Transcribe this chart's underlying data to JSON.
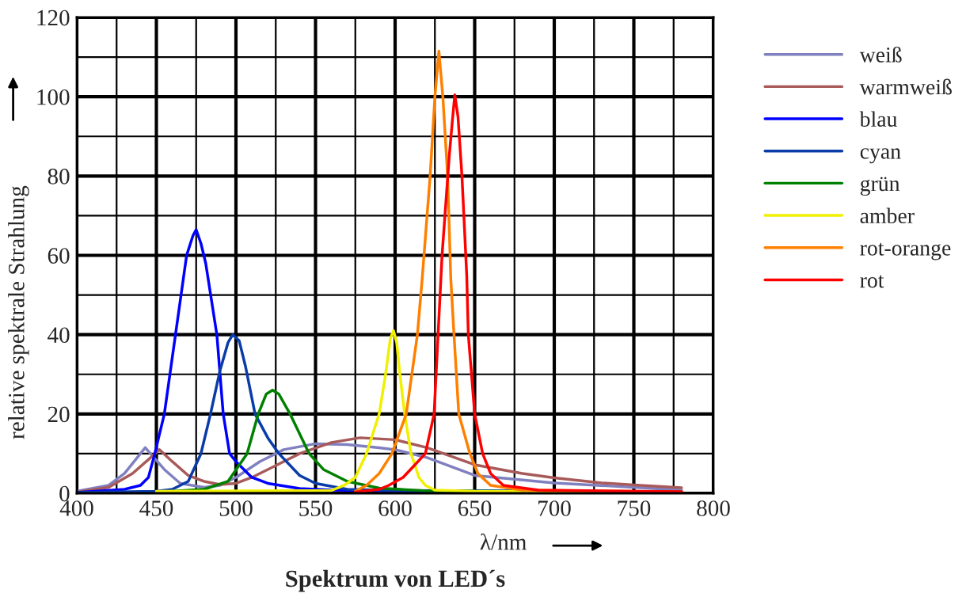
{
  "chart_data": {
    "type": "line",
    "title": "Spektrum von LED´s",
    "xlabel": "λ/nm",
    "ylabel": "relative spektrale Strahlung",
    "xlim": [
      400,
      800
    ],
    "ylim": [
      0,
      120
    ],
    "xticks": [
      400,
      {
        "value": 425,
        "label": null
      },
      450,
      {
        "value": 475,
        "label": null
      },
      500,
      {
        "value": 525,
        "label": null
      },
      550,
      {
        "value": 575,
        "label": null
      },
      600,
      {
        "value": 625,
        "label": null
      },
      650,
      {
        "value": 675,
        "label": null
      },
      700,
      {
        "value": 725,
        "label": null
      },
      750,
      {
        "value": 775,
        "label": null
      },
      800
    ],
    "yticks": [
      0,
      {
        "value": 10,
        "label": null
      },
      20,
      {
        "value": 30,
        "label": null
      },
      40,
      {
        "value": 50,
        "label": null
      },
      60,
      {
        "value": 70,
        "label": null
      },
      80,
      {
        "value": 90,
        "label": null
      },
      100,
      {
        "value": 110,
        "label": null
      },
      120
    ],
    "grid": true,
    "legend": "right",
    "line_style": "solid",
    "marker": "none",
    "series": [
      {
        "name": "weiß",
        "color": "#8080c0",
        "x": [
          400,
          420,
          430,
          443,
          455,
          465,
          480,
          490,
          500,
          515,
          530,
          550,
          570,
          590,
          600,
          620,
          650,
          700,
          750,
          780
        ],
        "values": [
          0.5,
          2,
          5,
          11.5,
          6,
          2.5,
          1.5,
          2,
          4,
          8,
          11,
          12.5,
          12.3,
          11.5,
          11,
          9,
          4.5,
          2.6,
          1.5,
          0.8
        ]
      },
      {
        "name": "warmweiß",
        "color": "#a85a5a",
        "x": [
          400,
          420,
          435,
          445,
          452,
          460,
          470,
          480,
          490,
          500,
          510,
          525,
          540,
          560,
          578,
          600,
          620,
          650,
          680,
          700,
          730,
          750,
          780
        ],
        "values": [
          0.3,
          1.5,
          5,
          8.5,
          11,
          8,
          4.5,
          3,
          2.2,
          2.5,
          4,
          7,
          10,
          12.8,
          14,
          13.5,
          11.5,
          7.2,
          5,
          3.9,
          2.6,
          2.1,
          1.4
        ]
      },
      {
        "name": "blau",
        "color": "#0000ff",
        "x": [
          400,
          430,
          440,
          445,
          449,
          455,
          462,
          469,
          473,
          475,
          478,
          481,
          488,
          492,
          496,
          500,
          510,
          520,
          540,
          560,
          600,
          780
        ],
        "values": [
          0.2,
          1,
          2,
          4,
          10,
          20,
          40,
          60,
          65,
          66.5,
          63,
          58,
          40,
          20,
          10,
          8,
          4,
          2.5,
          1.2,
          0.8,
          0.6,
          0.4
        ]
      },
      {
        "name": "cyan",
        "color": "#0a3ca8",
        "x": [
          400,
          450,
          460,
          470,
          478,
          484,
          490,
          495,
          498,
          502,
          506,
          512,
          520,
          527,
          540,
          550,
          570,
          600,
          780
        ],
        "values": [
          0.2,
          0.5,
          1,
          3,
          10,
          20,
          31,
          38,
          40,
          38.5,
          32,
          20,
          14,
          10,
          4.5,
          2.5,
          1,
          0.7,
          0.3
        ]
      },
      {
        "name": "grün",
        "color": "#008000",
        "x": [
          460,
          480,
          495,
          507,
          514,
          519,
          523,
          527,
          534,
          546,
          555,
          570,
          590,
          620,
          780
        ],
        "values": [
          0.5,
          1,
          3,
          10,
          20,
          25,
          26,
          25,
          20,
          10,
          6,
          3,
          1.3,
          0.6,
          0.3
        ]
      },
      {
        "name": "amber",
        "color": "#f0f000",
        "x": [
          450,
          560,
          568,
          575,
          582,
          590,
          594,
          597,
          599,
          601,
          603,
          606,
          610,
          615,
          619,
          625,
          650,
          780
        ],
        "values": [
          0.5,
          0.7,
          2,
          4,
          10,
          20,
          30,
          39,
          41,
          38,
          30,
          20,
          10,
          4,
          2,
          0.8,
          0.5,
          0.3
        ]
      },
      {
        "name": "rot-orange",
        "color": "#ff8000",
        "x": [
          575,
          582,
          590,
          598,
          607,
          614,
          617,
          622,
          625,
          627.5,
          630,
          633,
          635,
          637,
          640,
          647,
          652,
          660,
          680,
          780
        ],
        "values": [
          0.5,
          2,
          5,
          10,
          20,
          40,
          54,
          80,
          100,
          111.5,
          100,
          80,
          54,
          40,
          20,
          10,
          5,
          2,
          0.8,
          0.3
        ]
      },
      {
        "name": "rot",
        "color": "#ff0000",
        "x": [
          575,
          590,
          596,
          605,
          612,
          619,
          624.5,
          627,
          629.5,
          634,
          636,
          637.5,
          639.5,
          642,
          645,
          646,
          650,
          655,
          660,
          668,
          690,
          780
        ],
        "values": [
          0.3,
          1,
          2,
          4,
          7,
          10,
          20,
          40,
          60,
          85,
          94,
          100.5,
          95,
          80,
          55,
          40,
          20,
          10,
          5,
          2,
          0.8,
          0.4
        ]
      }
    ]
  }
}
